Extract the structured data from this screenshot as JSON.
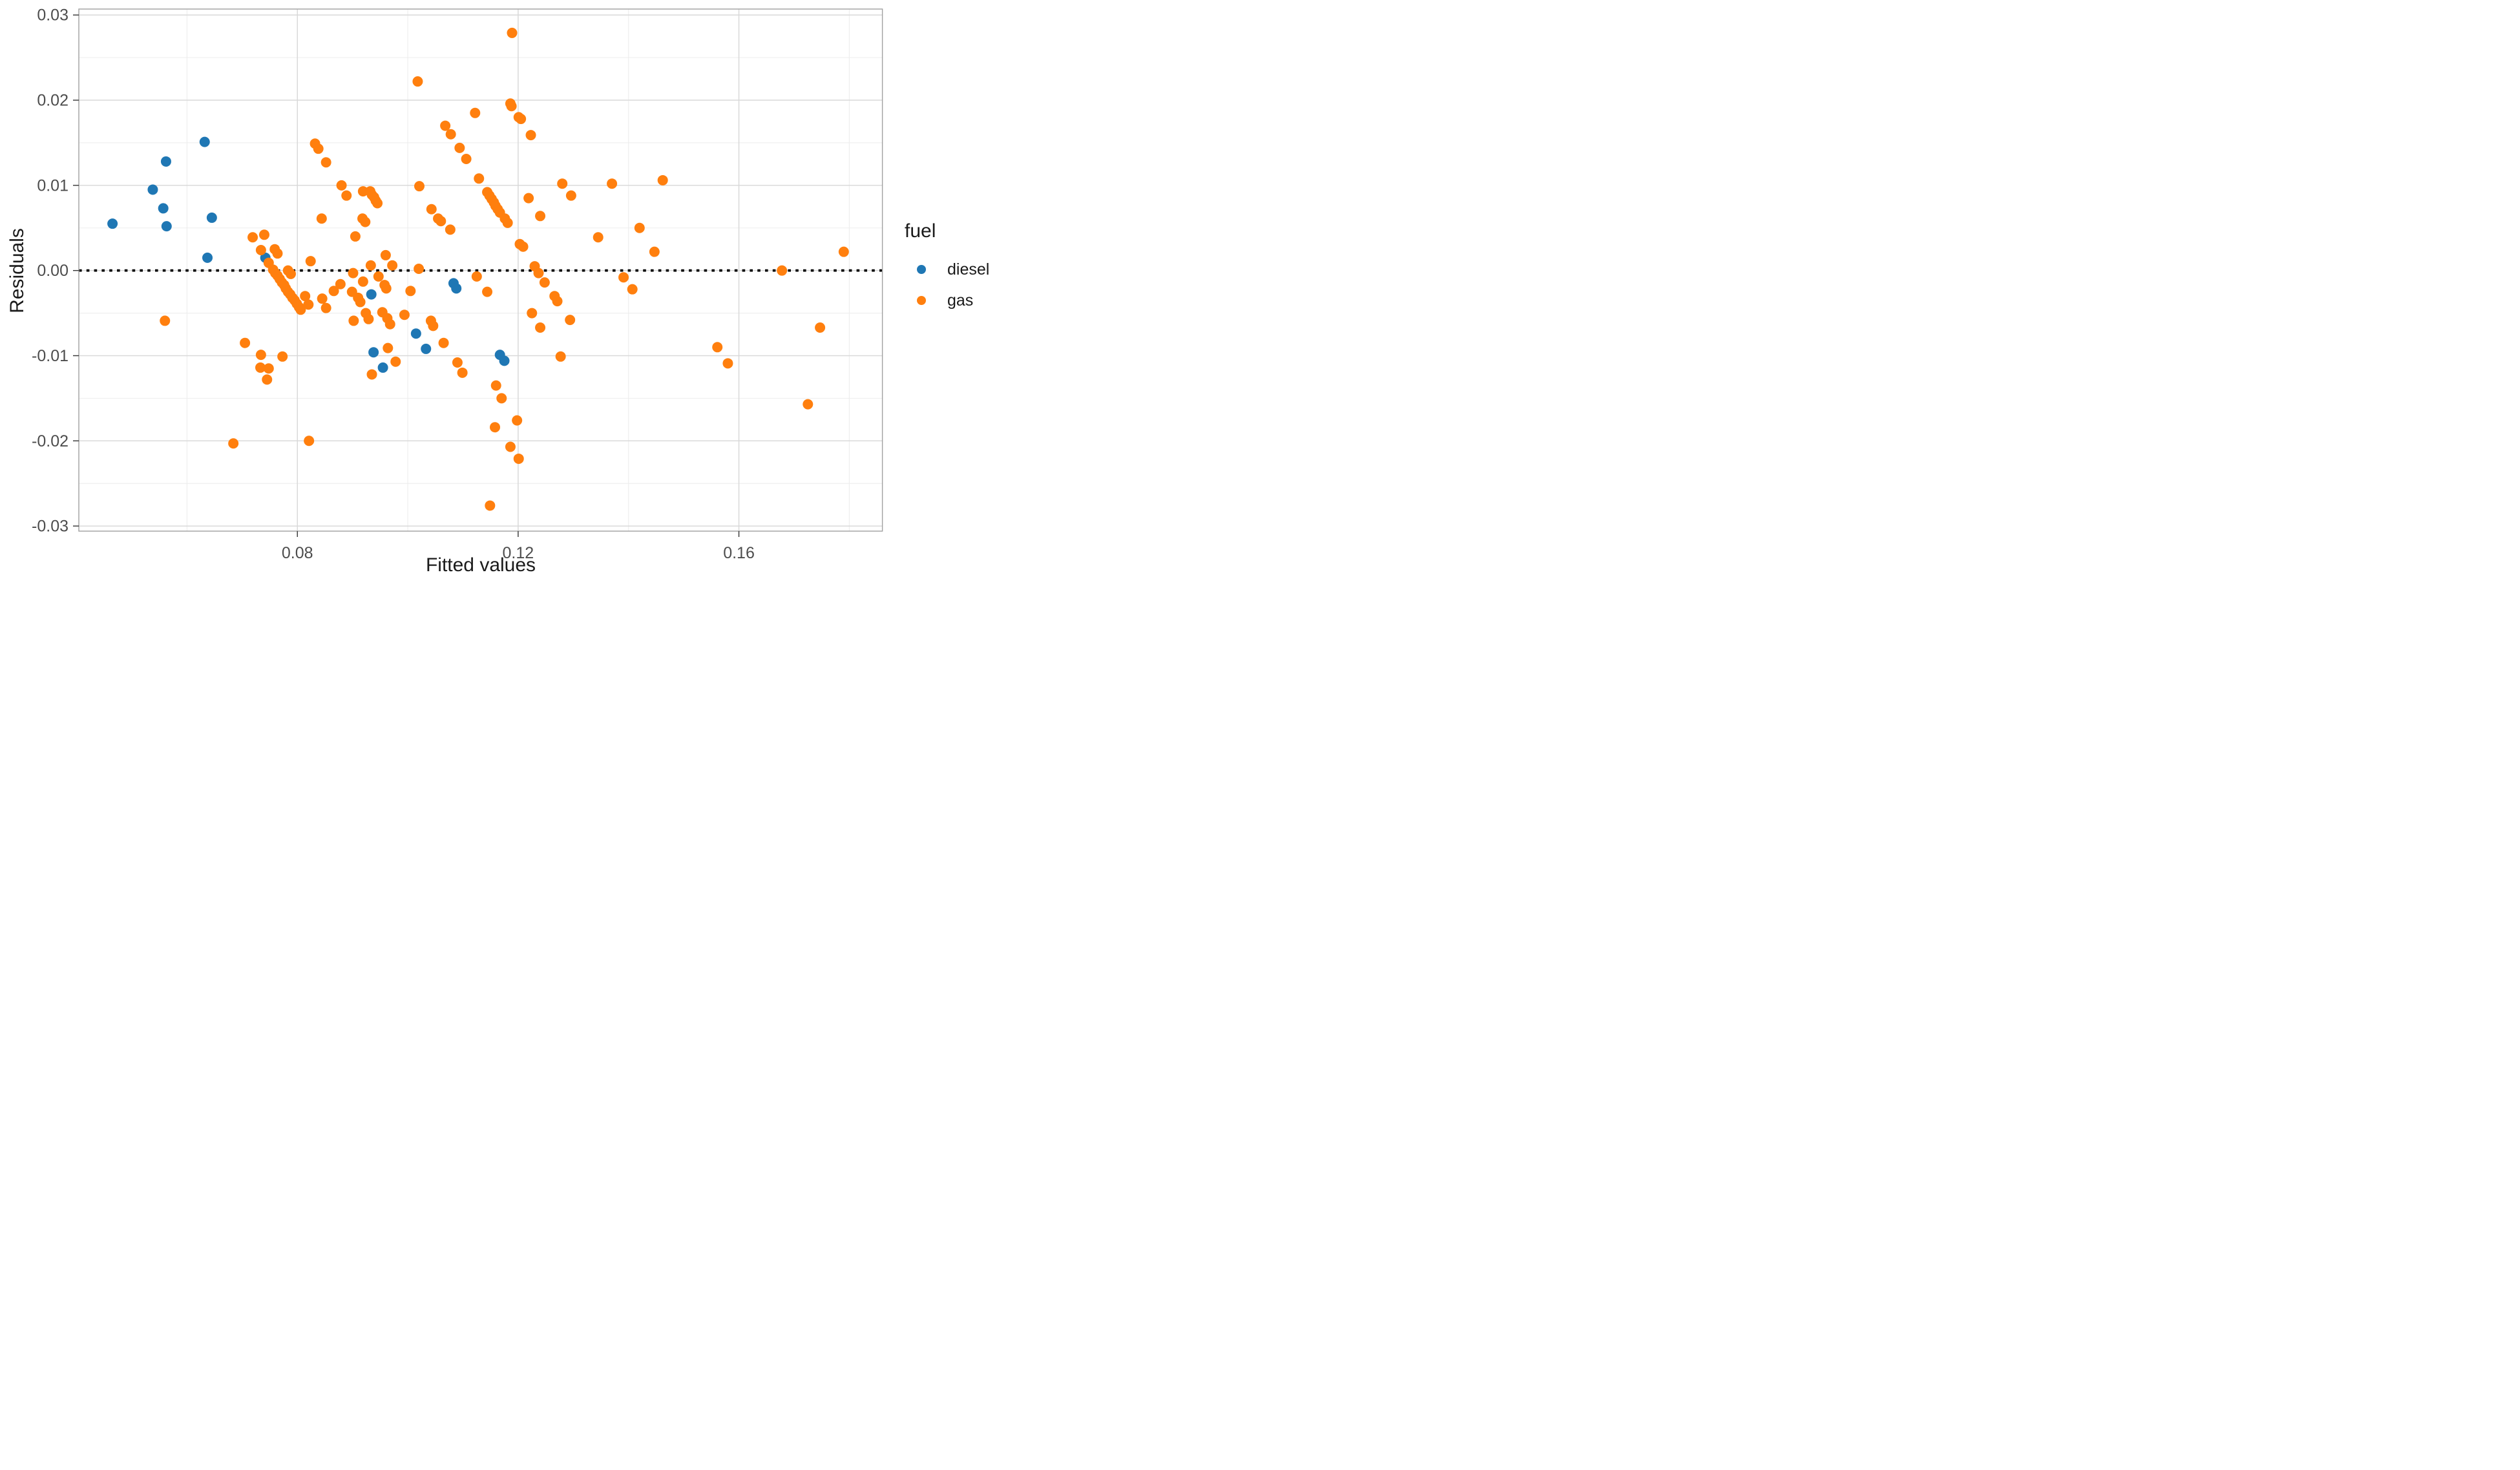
{
  "chart_data": {
    "type": "scatter",
    "title": "",
    "xlabel": "Fitted values",
    "ylabel": "Residuals",
    "xlim": [
      0.0404,
      0.186
    ],
    "ylim": [
      -0.0306,
      0.0307
    ],
    "grid": true,
    "x_ticks": {
      "major": [
        0.08,
        0.12,
        0.16
      ],
      "labels": [
        "0.08",
        "0.12",
        "0.16"
      ],
      "minor": [
        0.06,
        0.1,
        0.14,
        0.18
      ]
    },
    "y_ticks": {
      "major": [
        -0.03,
        -0.02,
        -0.01,
        0.0,
        0.01,
        0.02,
        0.03
      ],
      "labels": [
        "-0.03",
        "-0.02",
        "-0.01",
        "0.00",
        "0.01",
        "0.02",
        "0.03"
      ],
      "minor": [
        -0.025,
        -0.015,
        -0.005,
        0.005,
        0.015,
        0.025
      ]
    },
    "reference_line": {
      "y": 0,
      "linetype": "dotted",
      "color": "#000000"
    },
    "colors": {
      "major_grid": "#d9d9d9",
      "minor_grid": "#ededed",
      "panel_border": "#a0a0a0",
      "tick": "#333333",
      "tick_label": "#4d4d4d",
      "background": "#ffffff"
    },
    "legend": {
      "title": "fuel",
      "position": "right",
      "entries": [
        {
          "label": "diesel",
          "color": "#1f77b4"
        },
        {
          "label": "gas",
          "color": "#ff7f0e"
        }
      ]
    },
    "series": [
      {
        "name": "diesel",
        "color": "#1f77b4",
        "points": [
          [
            0.0465,
            0.0055
          ],
          [
            0.0538,
            0.0095
          ],
          [
            0.0557,
            0.0073
          ],
          [
            0.0562,
            0.0128
          ],
          [
            0.0563,
            0.0052
          ],
          [
            0.0632,
            0.0151
          ],
          [
            0.0637,
            0.0015
          ],
          [
            0.0645,
            0.0062
          ],
          [
            0.0742,
            0.0015
          ],
          [
            0.0934,
            -0.0028
          ],
          [
            0.0938,
            -0.0096
          ],
          [
            0.0955,
            -0.0114
          ],
          [
            0.1015,
            -0.0074
          ],
          [
            0.1033,
            -0.0092
          ],
          [
            0.1083,
            -0.0015
          ],
          [
            0.1088,
            -0.0021
          ],
          [
            0.1167,
            -0.0099
          ],
          [
            0.1175,
            -0.0106
          ]
        ]
      },
      {
        "name": "gas",
        "color": "#ff7f0e",
        "points": [
          [
            0.0832,
            0.0149
          ],
          [
            0.0838,
            0.0143
          ],
          [
            0.0852,
            0.0127
          ],
          [
            0.088,
            0.01
          ],
          [
            0.0889,
            0.0088
          ],
          [
            0.0844,
            0.0061
          ],
          [
            0.0719,
            0.0039
          ],
          [
            0.074,
            0.0042
          ],
          [
            0.0734,
            0.0024
          ],
          [
            0.0759,
            0.0025
          ],
          [
            0.0764,
            0.002
          ],
          [
            0.0748,
            0.0009
          ],
          [
            0.0824,
            0.0011
          ],
          [
            0.0756,
            0.0001
          ],
          [
            0.076,
            -0.0003
          ],
          [
            0.0764,
            -0.0006
          ],
          [
            0.0768,
            -0.001
          ],
          [
            0.0772,
            -0.0014
          ],
          [
            0.0776,
            -0.0017
          ],
          [
            0.0779,
            -0.0021
          ],
          [
            0.0783,
            -0.0025
          ],
          [
            0.0787,
            -0.0028
          ],
          [
            0.0791,
            -0.0032
          ],
          [
            0.0795,
            -0.0035
          ],
          [
            0.0799,
            -0.0039
          ],
          [
            0.0803,
            -0.0043
          ],
          [
            0.0806,
            -0.0046
          ],
          [
            0.0783,
            0.0
          ],
          [
            0.0788,
            -0.0004
          ],
          [
            0.0814,
            -0.003
          ],
          [
            0.082,
            -0.004
          ],
          [
            0.0845,
            -0.0033
          ],
          [
            0.0852,
            -0.0044
          ],
          [
            0.0866,
            -0.0024
          ],
          [
            0.0878,
            -0.0016
          ],
          [
            0.0901,
            -0.0003
          ],
          [
            0.0919,
            -0.0013
          ],
          [
            0.0933,
            0.0006
          ],
          [
            0.0947,
            -0.0007
          ],
          [
            0.096,
            0.0018
          ],
          [
            0.0972,
            0.0006
          ],
          [
            0.102,
            0.0002
          ],
          [
            0.0899,
            -0.0025
          ],
          [
            0.091,
            -0.0032
          ],
          [
            0.0914,
            -0.0037
          ],
          [
            0.0958,
            -0.0017
          ],
          [
            0.0961,
            -0.0021
          ],
          [
            0.0924,
            -0.005
          ],
          [
            0.0929,
            -0.0057
          ],
          [
            0.0954,
            -0.0049
          ],
          [
            0.0963,
            -0.0056
          ],
          [
            0.0968,
            -0.0063
          ],
          [
            0.0994,
            -0.0052
          ],
          [
            0.0902,
            -0.0059
          ],
          [
            0.1005,
            -0.0024
          ],
          [
            0.1042,
            -0.0059
          ],
          [
            0.1046,
            -0.0065
          ],
          [
            0.1065,
            -0.0085
          ],
          [
            0.0964,
            -0.0091
          ],
          [
            0.0978,
            -0.0107
          ],
          [
            0.0935,
            -0.0122
          ],
          [
            0.109,
            -0.0108
          ],
          [
            0.1099,
            -0.012
          ],
          [
            0.1125,
            -0.0007
          ],
          [
            0.1144,
            -0.0025
          ],
          [
            0.116,
            -0.0135
          ],
          [
            0.117,
            -0.015
          ],
          [
            0.1158,
            -0.0184
          ],
          [
            0.1198,
            -0.0176
          ],
          [
            0.1186,
            -0.0207
          ],
          [
            0.1201,
            -0.0221
          ],
          [
            0.1149,
            -0.0276
          ],
          [
            0.123,
            0.0005
          ],
          [
            0.1237,
            -0.0003
          ],
          [
            0.1248,
            -0.0014
          ],
          [
            0.1266,
            -0.003
          ],
          [
            0.1271,
            -0.0036
          ],
          [
            0.1225,
            -0.005
          ],
          [
            0.124,
            -0.0067
          ],
          [
            0.1294,
            -0.0058
          ],
          [
            0.1277,
            -0.0101
          ],
          [
            0.0905,
            0.004
          ],
          [
            0.0918,
            0.0061
          ],
          [
            0.0923,
            0.0057
          ],
          [
            0.0919,
            0.0093
          ],
          [
            0.0932,
            0.0093
          ],
          [
            0.0935,
            0.0089
          ],
          [
            0.0939,
            0.0086
          ],
          [
            0.0942,
            0.0082
          ],
          [
            0.0945,
            0.0079
          ],
          [
            0.1018,
            0.0222
          ],
          [
            0.1189,
            0.0279
          ],
          [
            0.1186,
            0.0196
          ],
          [
            0.1188,
            0.0193
          ],
          [
            0.1122,
            0.0185
          ],
          [
            0.1201,
            0.018
          ],
          [
            0.1205,
            0.0178
          ],
          [
            0.1068,
            0.017
          ],
          [
            0.1078,
            0.016
          ],
          [
            0.1223,
            0.0159
          ],
          [
            0.1094,
            0.0144
          ],
          [
            0.1106,
            0.0131
          ],
          [
            0.1129,
            0.0108
          ],
          [
            0.1021,
            0.0099
          ],
          [
            0.1144,
            0.0092
          ],
          [
            0.1148,
            0.0088
          ],
          [
            0.1152,
            0.0084
          ],
          [
            0.1156,
            0.008
          ],
          [
            0.1159,
            0.0076
          ],
          [
            0.1163,
            0.0072
          ],
          [
            0.1167,
            0.0068
          ],
          [
            0.1176,
            0.0061
          ],
          [
            0.1181,
            0.0056
          ],
          [
            0.1043,
            0.0072
          ],
          [
            0.1055,
            0.0061
          ],
          [
            0.106,
            0.0058
          ],
          [
            0.1077,
            0.0048
          ],
          [
            0.1219,
            0.0085
          ],
          [
            0.124,
            0.0064
          ],
          [
            0.128,
            0.0102
          ],
          [
            0.1296,
            0.0088
          ],
          [
            0.137,
            0.0102
          ],
          [
            0.1345,
            0.0039
          ],
          [
            0.1203,
            0.0031
          ],
          [
            0.1209,
            0.0028
          ],
          [
            0.1462,
            0.0106
          ],
          [
            0.142,
            0.005
          ],
          [
            0.1447,
            0.0022
          ],
          [
            0.179,
            0.0022
          ],
          [
            0.1678,
            0.0
          ],
          [
            0.1391,
            -0.0008
          ],
          [
            0.1407,
            -0.0022
          ],
          [
            0.1561,
            -0.009
          ],
          [
            0.158,
            -0.0109
          ],
          [
            0.1747,
            -0.0067
          ],
          [
            0.1725,
            -0.0157
          ],
          [
            0.056,
            -0.0059
          ],
          [
            0.0705,
            -0.0085
          ],
          [
            0.0734,
            -0.0099
          ],
          [
            0.0773,
            -0.0101
          ],
          [
            0.0733,
            -0.0114
          ],
          [
            0.0748,
            -0.0115
          ],
          [
            0.0745,
            -0.0128
          ],
          [
            0.0684,
            -0.0203
          ],
          [
            0.0821,
            -0.02
          ]
        ]
      }
    ]
  }
}
